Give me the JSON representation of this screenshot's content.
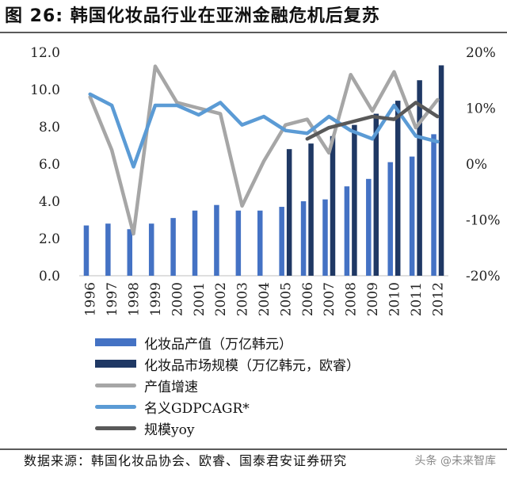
{
  "title": "图  26:  韩国化妆品行业在亚洲金融危机后复苏",
  "source": "数据来源：韩国化妆品协会、欧睿、国泰君安证券研究",
  "watermark": "头条 @未来智库",
  "colors": {
    "production_bar": "#4472c4",
    "market_bar": "#1f3864",
    "production_growth_line": "#a6a6a6",
    "gdp_cagr_line": "#5b9bd5",
    "market_yoy_line": "#595959",
    "rule": "#5a5a5a"
  },
  "chart_data": {
    "type": "bar",
    "categories": [
      "1996",
      "1997",
      "1998",
      "1999",
      "2000",
      "2001",
      "2002",
      "2003",
      "2004",
      "2005",
      "2006",
      "2007",
      "2008",
      "2009",
      "2010",
      "2011",
      "2012"
    ],
    "left_axis": {
      "ylim": [
        0,
        12
      ],
      "ticks": [
        "0.0",
        "2.0",
        "4.0",
        "6.0",
        "8.0",
        "10.0",
        "12.0"
      ]
    },
    "right_axis": {
      "ylim": [
        -20,
        20
      ],
      "ticks": [
        "-20%",
        "-10%",
        "0%",
        "10%",
        "20%"
      ]
    },
    "series": [
      {
        "name": "化妆品产值（万亿韩元）",
        "kind": "bar",
        "axis": "left",
        "color": "#4472c4",
        "values": [
          2.7,
          2.8,
          2.5,
          2.8,
          3.1,
          3.5,
          3.8,
          3.5,
          3.5,
          3.7,
          4.0,
          4.1,
          4.8,
          5.2,
          6.1,
          6.4,
          7.6
        ]
      },
      {
        "name": "化妆品市场规模（万亿韩元，欧睿）",
        "kind": "bar",
        "axis": "left",
        "color": "#1f3864",
        "values": [
          null,
          null,
          null,
          null,
          null,
          null,
          null,
          null,
          null,
          6.8,
          7.1,
          7.5,
          8.1,
          8.7,
          9.4,
          10.5,
          11.3
        ]
      },
      {
        "name": "产值增速",
        "kind": "line",
        "axis": "right",
        "color": "#a6a6a6",
        "values": [
          12.0,
          2.5,
          -12.5,
          17.5,
          11.0,
          10.0,
          9.0,
          -7.5,
          0.5,
          7.0,
          8.0,
          2.0,
          16.0,
          9.5,
          16.5,
          6.5,
          11.5
        ]
      },
      {
        "name": "名义GDPCAGR*",
        "kind": "line",
        "axis": "right",
        "color": "#5b9bd5",
        "values": [
          12.5,
          10.5,
          -0.5,
          10.5,
          10.5,
          8.8,
          11.0,
          7.0,
          8.5,
          6.0,
          5.5,
          8.5,
          6.0,
          4.5,
          10.5,
          5.0,
          4.0
        ]
      },
      {
        "name": "规模yoy",
        "kind": "line",
        "axis": "right",
        "color": "#595959",
        "values": [
          null,
          null,
          null,
          null,
          null,
          null,
          null,
          null,
          null,
          null,
          4.5,
          6.5,
          7.5,
          8.5,
          8.0,
          11.0,
          8.5
        ]
      }
    ],
    "legend": {
      "placement": "bottom"
    },
    "grid": false
  }
}
